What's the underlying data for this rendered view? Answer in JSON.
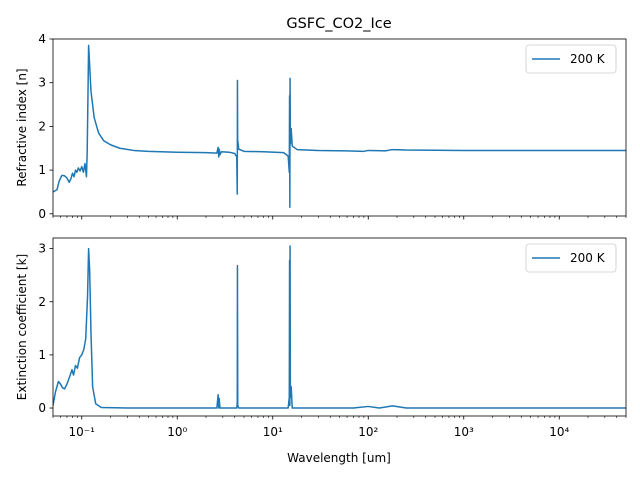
{
  "chart_data": {
    "type": "line",
    "title": "GSFC_CO2_Ice",
    "xlabel": "Wavelength [um]",
    "xscale": "log",
    "xlim": [
      0.05,
      50000
    ],
    "xticks": [
      {
        "value": 0.1,
        "label": "10⁻¹"
      },
      {
        "value": 1,
        "label": "10⁰"
      },
      {
        "value": 10,
        "label": "10¹"
      },
      {
        "value": 100,
        "label": "10²"
      },
      {
        "value": 1000,
        "label": "10³"
      },
      {
        "value": 10000,
        "label": "10⁴"
      }
    ],
    "color": "#1f77b4",
    "panels": [
      {
        "ylabel": "Refractive index [n]",
        "ylim": [
          -0.05,
          4.0
        ],
        "yticks": [
          "0",
          "1",
          "2",
          "3",
          "4"
        ],
        "legend": {
          "position": "top-right"
        },
        "series": [
          {
            "name": "200 K",
            "points": [
              [
                0.05,
                0.5
              ],
              [
                0.055,
                0.55
              ],
              [
                0.058,
                0.75
              ],
              [
                0.062,
                0.88
              ],
              [
                0.066,
                0.87
              ],
              [
                0.07,
                0.82
              ],
              [
                0.074,
                0.72
              ],
              [
                0.077,
                0.8
              ],
              [
                0.08,
                0.93
              ],
              [
                0.083,
                0.85
              ],
              [
                0.086,
                1.0
              ],
              [
                0.089,
                0.95
              ],
              [
                0.092,
                1.05
              ],
              [
                0.096,
                0.98
              ],
              [
                0.1,
                1.08
              ],
              [
                0.104,
                0.95
              ],
              [
                0.108,
                1.15
              ],
              [
                0.112,
                0.85
              ],
              [
                0.114,
                1.4
              ],
              [
                0.116,
                2.6
              ],
              [
                0.118,
                3.85
              ],
              [
                0.121,
                3.4
              ],
              [
                0.125,
                2.8
              ],
              [
                0.135,
                2.2
              ],
              [
                0.15,
                1.85
              ],
              [
                0.17,
                1.67
              ],
              [
                0.2,
                1.58
              ],
              [
                0.25,
                1.5
              ],
              [
                0.35,
                1.45
              ],
              [
                0.5,
                1.43
              ],
              [
                1.0,
                1.41
              ],
              [
                2.0,
                1.4
              ],
              [
                2.6,
                1.39
              ],
              [
                2.68,
                1.52
              ],
              [
                2.72,
                1.3
              ],
              [
                2.75,
                1.48
              ],
              [
                2.8,
                1.35
              ],
              [
                2.9,
                1.42
              ],
              [
                3.5,
                1.41
              ],
              [
                4.0,
                1.38
              ],
              [
                4.2,
                1.3
              ],
              [
                4.25,
                0.45
              ],
              [
                4.27,
                3.05
              ],
              [
                4.29,
                1.7
              ],
              [
                4.4,
                1.48
              ],
              [
                5.0,
                1.43
              ],
              [
                8.0,
                1.42
              ],
              [
                13.0,
                1.4
              ],
              [
                14.5,
                1.32
              ],
              [
                14.9,
                0.95
              ],
              [
                15.0,
                2.7
              ],
              [
                15.1,
                0.15
              ],
              [
                15.18,
                3.1
              ],
              [
                15.3,
                1.6
              ],
              [
                15.6,
                1.95
              ],
              [
                16.0,
                1.55
              ],
              [
                18.0,
                1.47
              ],
              [
                30.0,
                1.45
              ],
              [
                60.0,
                1.44
              ],
              [
                90.0,
                1.43
              ],
              [
                100.0,
                1.45
              ],
              [
                150.0,
                1.44
              ],
              [
                180.0,
                1.47
              ],
              [
                250.0,
                1.46
              ],
              [
                1000.0,
                1.45
              ],
              [
                50000.0,
                1.45
              ]
            ]
          }
        ]
      },
      {
        "ylabel": "Extinction coefficient [k]",
        "ylim": [
          -0.15,
          3.2
        ],
        "yticks": [
          "0",
          "1",
          "2",
          "3"
        ],
        "legend": {
          "position": "top-right"
        },
        "series": [
          {
            "name": "200 K",
            "points": [
              [
                0.05,
                0.05
              ],
              [
                0.053,
                0.3
              ],
              [
                0.057,
                0.5
              ],
              [
                0.06,
                0.45
              ],
              [
                0.063,
                0.38
              ],
              [
                0.066,
                0.36
              ],
              [
                0.07,
                0.45
              ],
              [
                0.075,
                0.6
              ],
              [
                0.079,
                0.72
              ],
              [
                0.082,
                0.62
              ],
              [
                0.086,
                0.8
              ],
              [
                0.09,
                0.75
              ],
              [
                0.095,
                0.95
              ],
              [
                0.1,
                1.0
              ],
              [
                0.105,
                1.1
              ],
              [
                0.11,
                1.3
              ],
              [
                0.115,
                2.1
              ],
              [
                0.118,
                3.0
              ],
              [
                0.121,
                2.6
              ],
              [
                0.125,
                1.4
              ],
              [
                0.13,
                0.4
              ],
              [
                0.14,
                0.08
              ],
              [
                0.16,
                0.01
              ],
              [
                0.3,
                0.0
              ],
              [
                2.6,
                0.0
              ],
              [
                2.68,
                0.25
              ],
              [
                2.72,
                0.0
              ],
              [
                2.75,
                0.18
              ],
              [
                2.8,
                0.0
              ],
              [
                4.2,
                0.0
              ],
              [
                4.25,
                0.1
              ],
              [
                4.27,
                2.68
              ],
              [
                4.3,
                0.05
              ],
              [
                4.4,
                0.0
              ],
              [
                14.5,
                0.0
              ],
              [
                14.9,
                0.2
              ],
              [
                15.0,
                2.78
              ],
              [
                15.1,
                0.05
              ],
              [
                15.18,
                3.05
              ],
              [
                15.3,
                0.2
              ],
              [
                15.6,
                0.4
              ],
              [
                16.0,
                0.0
              ],
              [
                70.0,
                0.0
              ],
              [
                100.0,
                0.03
              ],
              [
                130.0,
                0.0
              ],
              [
                180.0,
                0.04
              ],
              [
                250.0,
                0.0
              ],
              [
                50000.0,
                0.0
              ]
            ]
          }
        ]
      }
    ]
  }
}
